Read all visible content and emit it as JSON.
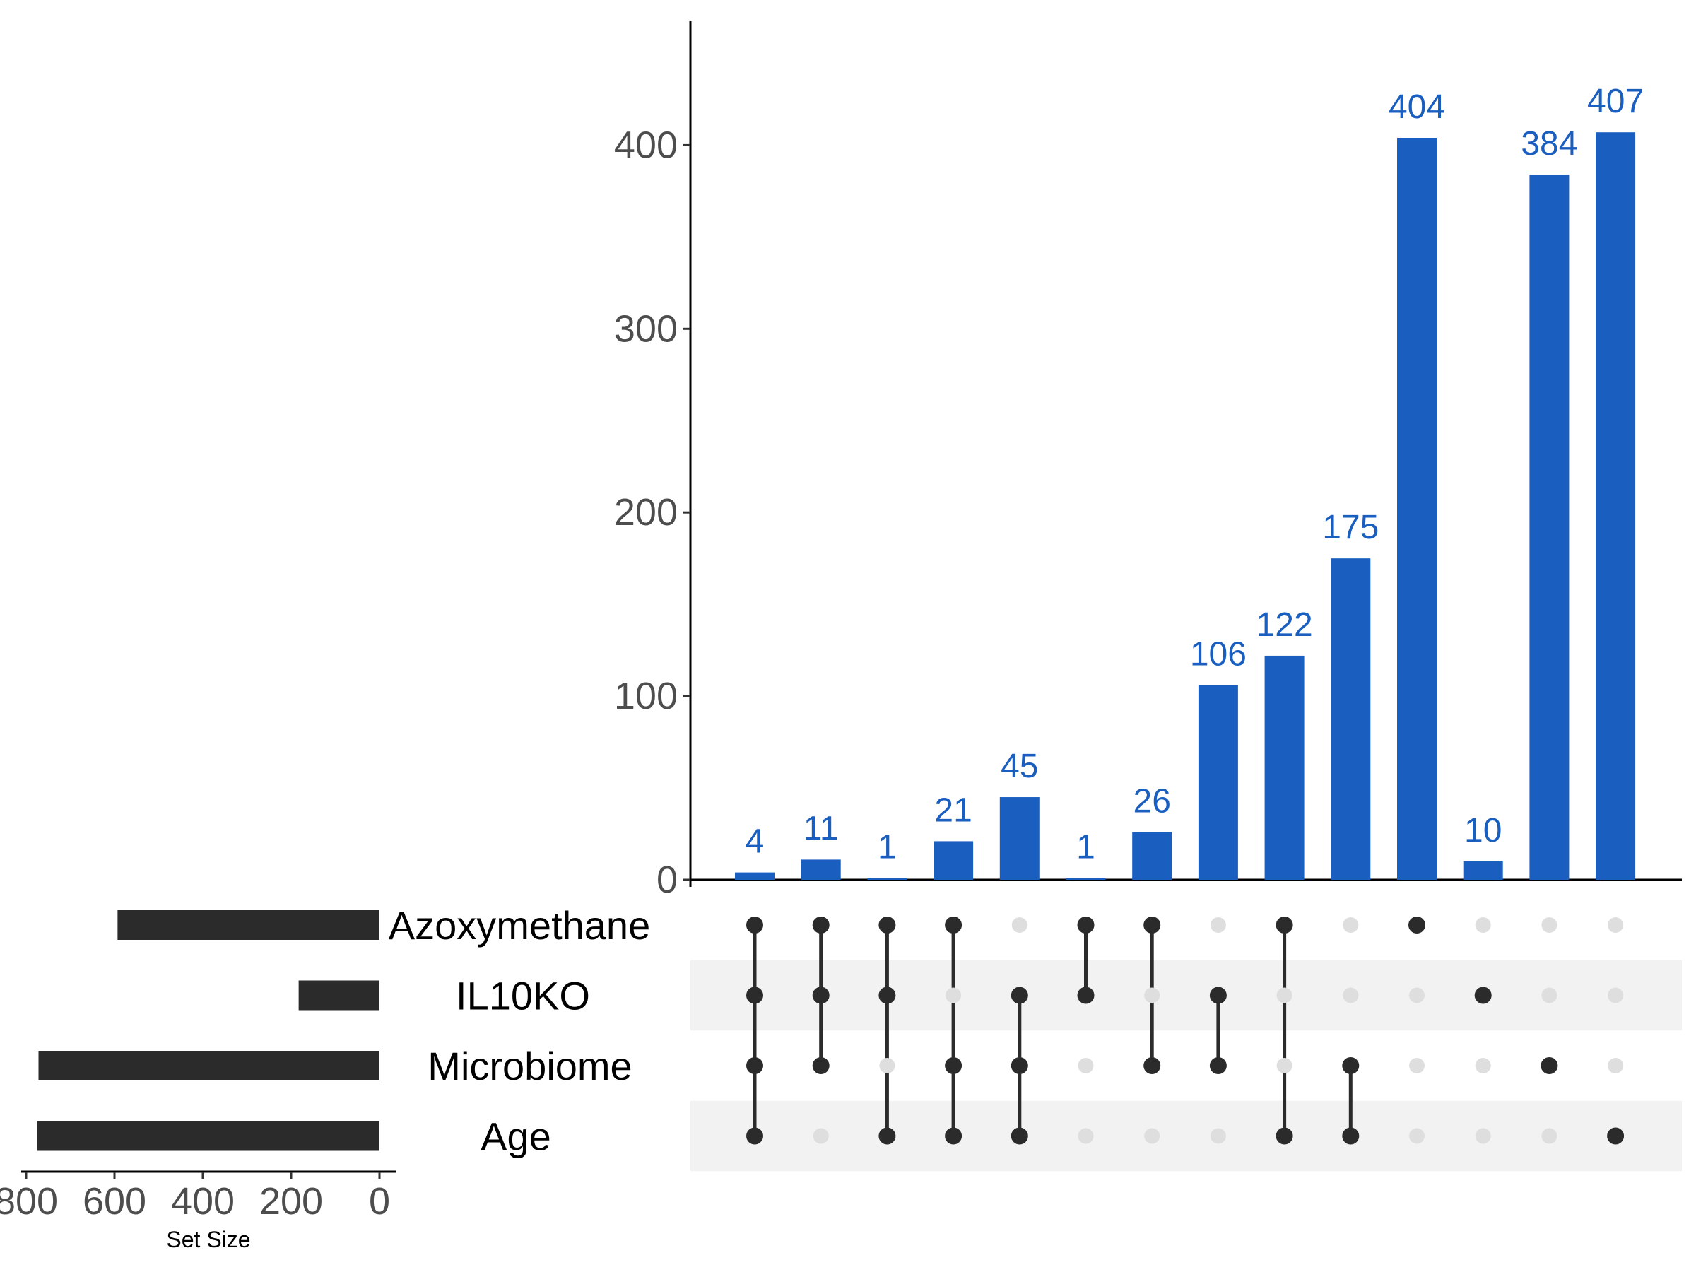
{
  "chart_data": {
    "type": "upset",
    "colors": {
      "intersection_bars": "#1a5fbf",
      "bar_labels": "#1a5fbf",
      "dot_active": "#2b2b2b",
      "dot_inactive": "#dedede",
      "set_bars": "#2b2b2b",
      "row_stripe": "#f2f2f2",
      "axis": "#000000"
    },
    "intersection_axis": {
      "ylim": [
        0,
        470
      ],
      "ticks": [
        0,
        100,
        200,
        300,
        400
      ],
      "tick_labels": [
        "0",
        "100",
        "200",
        "300",
        "400"
      ]
    },
    "set_size_axis": {
      "title": "Set Size",
      "xlim_reversed": [
        0,
        800
      ],
      "ticks": [
        0,
        200,
        400,
        600,
        800
      ],
      "tick_labels": [
        "0",
        "200",
        "400",
        "600",
        "800"
      ]
    },
    "sets": [
      {
        "name": "Azoxymethane",
        "size": 593
      },
      {
        "name": "IL10KO",
        "size": 183
      },
      {
        "name": "Microbiome",
        "size": 772
      },
      {
        "name": "Age",
        "size": 775
      }
    ],
    "intersections": [
      {
        "value": 4,
        "label": "4",
        "members": [
          1,
          1,
          1,
          1
        ]
      },
      {
        "value": 11,
        "label": "11",
        "members": [
          1,
          1,
          1,
          0
        ]
      },
      {
        "value": 1,
        "label": "1",
        "members": [
          1,
          1,
          0,
          1
        ]
      },
      {
        "value": 21,
        "label": "21",
        "members": [
          1,
          0,
          1,
          1
        ]
      },
      {
        "value": 45,
        "label": "45",
        "members": [
          0,
          1,
          1,
          1
        ]
      },
      {
        "value": 1,
        "label": "1",
        "members": [
          1,
          1,
          0,
          0
        ]
      },
      {
        "value": 26,
        "label": "26",
        "members": [
          1,
          0,
          1,
          0
        ]
      },
      {
        "value": 106,
        "label": "106",
        "members": [
          0,
          1,
          1,
          0
        ]
      },
      {
        "value": 122,
        "label": "122",
        "members": [
          1,
          0,
          0,
          1
        ]
      },
      {
        "value": 175,
        "label": "175",
        "members": [
          0,
          0,
          1,
          1
        ]
      },
      {
        "value": 404,
        "label": "404",
        "members": [
          1,
          0,
          0,
          0
        ]
      },
      {
        "value": 10,
        "label": "10",
        "members": [
          0,
          1,
          0,
          0
        ]
      },
      {
        "value": 384,
        "label": "384",
        "members": [
          0,
          0,
          1,
          0
        ]
      },
      {
        "value": 407,
        "label": "407",
        "members": [
          0,
          0,
          0,
          1
        ]
      }
    ]
  }
}
